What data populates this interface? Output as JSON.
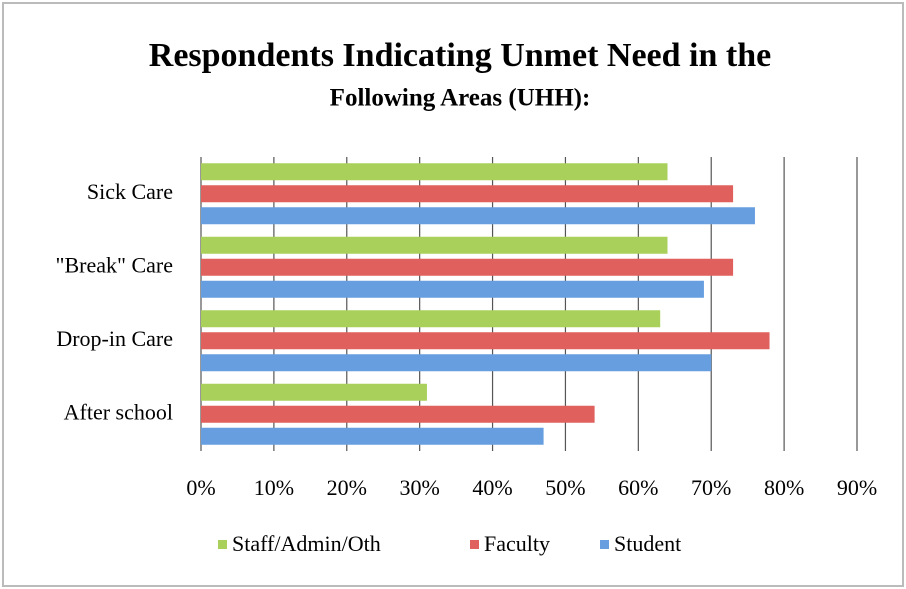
{
  "chart_data": {
    "type": "bar",
    "orientation": "horizontal",
    "title": "Respondents Indicating Unmet Need in the",
    "subtitle": "Following Areas (UHH):",
    "categories": [
      "Sick Care",
      "\"Break\" Care",
      "Drop-in Care",
      "After school"
    ],
    "series": [
      {
        "name": "Staff/Admin/Oth",
        "color": "#a9d05a",
        "values": [
          64,
          64,
          63,
          31
        ]
      },
      {
        "name": "Faculty",
        "color": "#e0605d",
        "values": [
          73,
          73,
          78,
          54
        ]
      },
      {
        "name": "Student",
        "color": "#669ee0",
        "values": [
          76,
          69,
          70,
          47
        ]
      }
    ],
    "xlim": [
      0,
      90
    ],
    "xticks": [
      {
        "value": 0,
        "label": "0%"
      },
      {
        "value": 10,
        "label": "10%"
      },
      {
        "value": 20,
        "label": "20%"
      },
      {
        "value": 30,
        "label": "30%"
      },
      {
        "value": 40,
        "label": "40%"
      },
      {
        "value": 50,
        "label": "50%"
      },
      {
        "value": 60,
        "label": "60%"
      },
      {
        "value": 70,
        "label": "70%"
      },
      {
        "value": 80,
        "label": "80%"
      },
      {
        "value": 90,
        "label": "90%"
      }
    ],
    "grid": true,
    "legend": "bottom"
  }
}
